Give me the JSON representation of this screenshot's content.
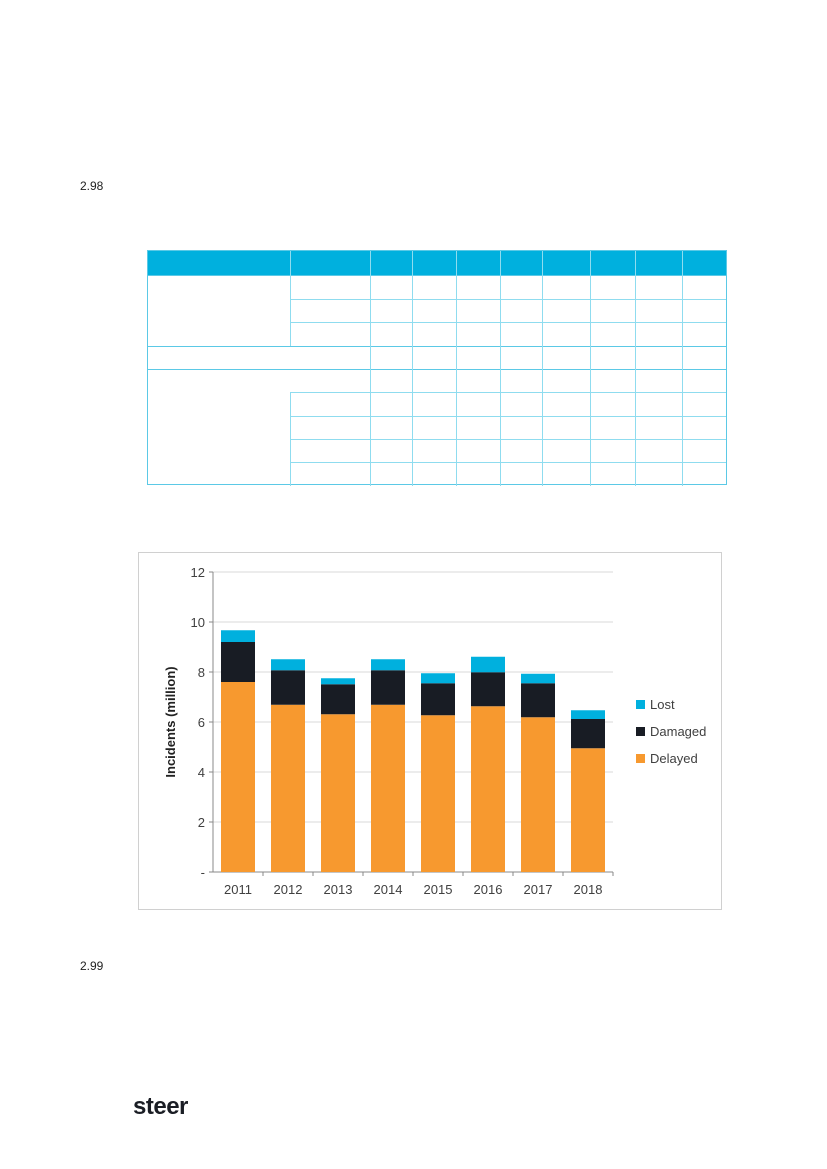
{
  "paragraphs": [
    {
      "number": "2.98"
    },
    {
      "number": "2.99"
    }
  ],
  "logo": "steer",
  "chart_data": {
    "type": "bar",
    "stacked": true,
    "categories": [
      "2011",
      "2012",
      "2013",
      "2014",
      "2015",
      "2016",
      "2017",
      "2018"
    ],
    "series": [
      {
        "name": "Delayed",
        "color": "#f7992f",
        "values": [
          7.6,
          6.69,
          6.31,
          6.69,
          6.27,
          6.63,
          6.19,
          4.95
        ]
      },
      {
        "name": "Damaged",
        "color": "#181c24",
        "values": [
          1.6,
          1.38,
          1.2,
          1.38,
          1.28,
          1.36,
          1.36,
          1.17
        ]
      },
      {
        "name": "Lost",
        "color": "#00b0de",
        "values": [
          0.47,
          0.44,
          0.24,
          0.44,
          0.4,
          0.62,
          0.38,
          0.35
        ]
      }
    ],
    "ylabel": "Incidents (million)",
    "xlabel": "",
    "ylim": [
      0,
      12
    ],
    "yticks": [
      "-",
      "2",
      "4",
      "6",
      "8",
      "10",
      "12"
    ],
    "grid": true,
    "legend_position": "right",
    "legend_order": [
      "Lost",
      "Damaged",
      "Delayed"
    ]
  }
}
